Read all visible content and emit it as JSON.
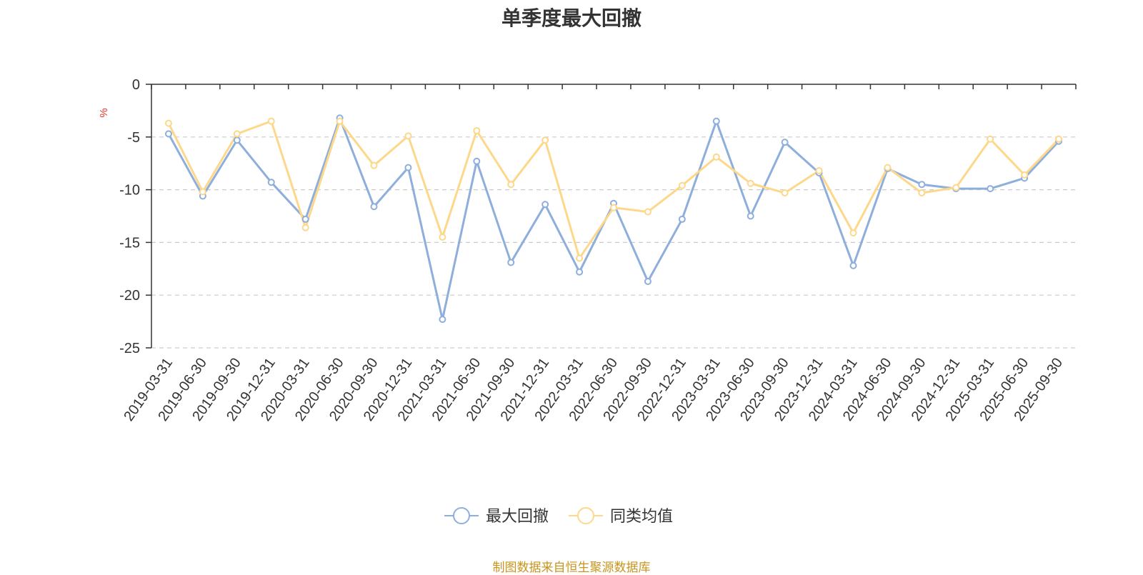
{
  "chart_data": {
    "type": "line",
    "title": "单季度最大回撤",
    "ylabel": "%",
    "ylim": [
      -25,
      0
    ],
    "yticks": [
      0,
      -5,
      -10,
      -15,
      -20,
      -25
    ],
    "grid": true,
    "legend_position": "bottom",
    "x": [
      "2019-03-31",
      "2019-06-30",
      "2019-09-30",
      "2019-12-31",
      "2020-03-31",
      "2020-06-30",
      "2020-09-30",
      "2020-12-31",
      "2021-03-31",
      "2021-06-30",
      "2021-09-30",
      "2021-12-31",
      "2022-03-31",
      "2022-06-30",
      "2022-09-30",
      "2022-12-31",
      "2023-03-31",
      "2023-06-30",
      "2023-09-30",
      "2023-12-31",
      "2024-03-31",
      "2024-06-30",
      "2024-09-30",
      "2024-12-31",
      "2025-03-31",
      "2025-06-30",
      "2025-09-30"
    ],
    "series": [
      {
        "name": "最大回撤",
        "color": "#8eaedc",
        "values": [
          -4.7,
          -10.6,
          -5.3,
          -9.3,
          -12.8,
          -3.2,
          -11.6,
          -7.9,
          -22.3,
          -7.3,
          -16.9,
          -11.4,
          -17.8,
          -11.3,
          -18.7,
          -12.8,
          -3.5,
          -12.5,
          -5.5,
          -8.4,
          -17.2,
          -8.0,
          -9.5,
          -9.9,
          -9.9,
          -8.9,
          -5.4
        ]
      },
      {
        "name": "同类均值",
        "color": "#fdd88a",
        "values": [
          -3.7,
          -10.2,
          -4.7,
          -3.5,
          -13.6,
          -3.5,
          -7.7,
          -4.9,
          -14.5,
          -4.4,
          -9.5,
          -5.3,
          -16.5,
          -11.7,
          -12.1,
          -9.6,
          -6.9,
          -9.4,
          -10.3,
          -8.2,
          -14.1,
          -7.9,
          -10.3,
          -9.8,
          -5.2,
          -8.6,
          -5.2
        ]
      }
    ]
  },
  "source_note": "制图数据来自恒生聚源数据库"
}
